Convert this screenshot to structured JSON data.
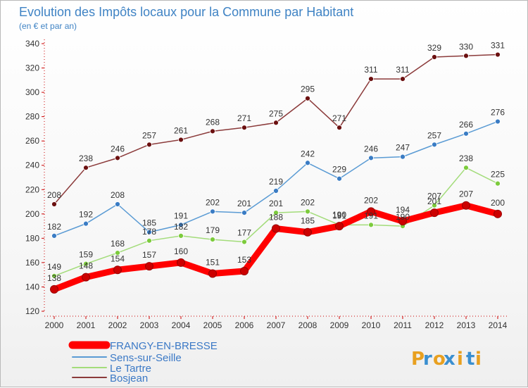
{
  "chart_data": {
    "type": "line",
    "title": "Evolution des Impôts locaux pour la Commune par Habitant",
    "subtitle": "(en € et par an)",
    "x": [
      "2000",
      "2001",
      "2002",
      "2003",
      "2004",
      "2005",
      "2006",
      "2007",
      "2008",
      "2009",
      "2010",
      "2011",
      "2012",
      "2013",
      "2014"
    ],
    "ylim": [
      120,
      340
    ],
    "yticks": [
      120,
      140,
      160,
      180,
      200,
      220,
      240,
      260,
      280,
      300,
      320,
      340
    ],
    "grid": false,
    "legend_position": "bottom-left",
    "series": [
      {
        "name": "FRANGY-EN-BRESSE",
        "color": "#ff0000",
        "marker": "#cc0000",
        "values": [
          138,
          148,
          154,
          157,
          160,
          151,
          153,
          188,
          185,
          190,
          202,
          194,
          201,
          207,
          200
        ]
      },
      {
        "name": "Sens-sur-Seille",
        "color": "#5a9bd4",
        "marker": "#3a7cc4",
        "values": [
          182,
          192,
          208,
          185,
          191,
          202,
          201,
          219,
          242,
          229,
          246,
          247,
          257,
          266,
          276
        ]
      },
      {
        "name": "Le Tartre",
        "color": "#a3dc7a",
        "marker": "#7ccb3c",
        "values": [
          149,
          159,
          168,
          178,
          182,
          179,
          177,
          201,
          202,
          191,
          191,
          190,
          207,
          238,
          225
        ]
      },
      {
        "name": "Bosjean",
        "color": "#8b3a3a",
        "marker": "#6b1010",
        "values": [
          208,
          238,
          246,
          257,
          261,
          268,
          271,
          275,
          295,
          271,
          311,
          311,
          329,
          330,
          331
        ]
      }
    ]
  },
  "brand": {
    "letters": [
      "P",
      "r",
      "o",
      "x",
      "i",
      "t",
      "i"
    ],
    "colors": [
      "#e8a020",
      "#3a8fd0",
      "#e8a020",
      "#3a8fd0",
      "#e8a020",
      "#3a8fd0",
      "#e8a020"
    ]
  }
}
